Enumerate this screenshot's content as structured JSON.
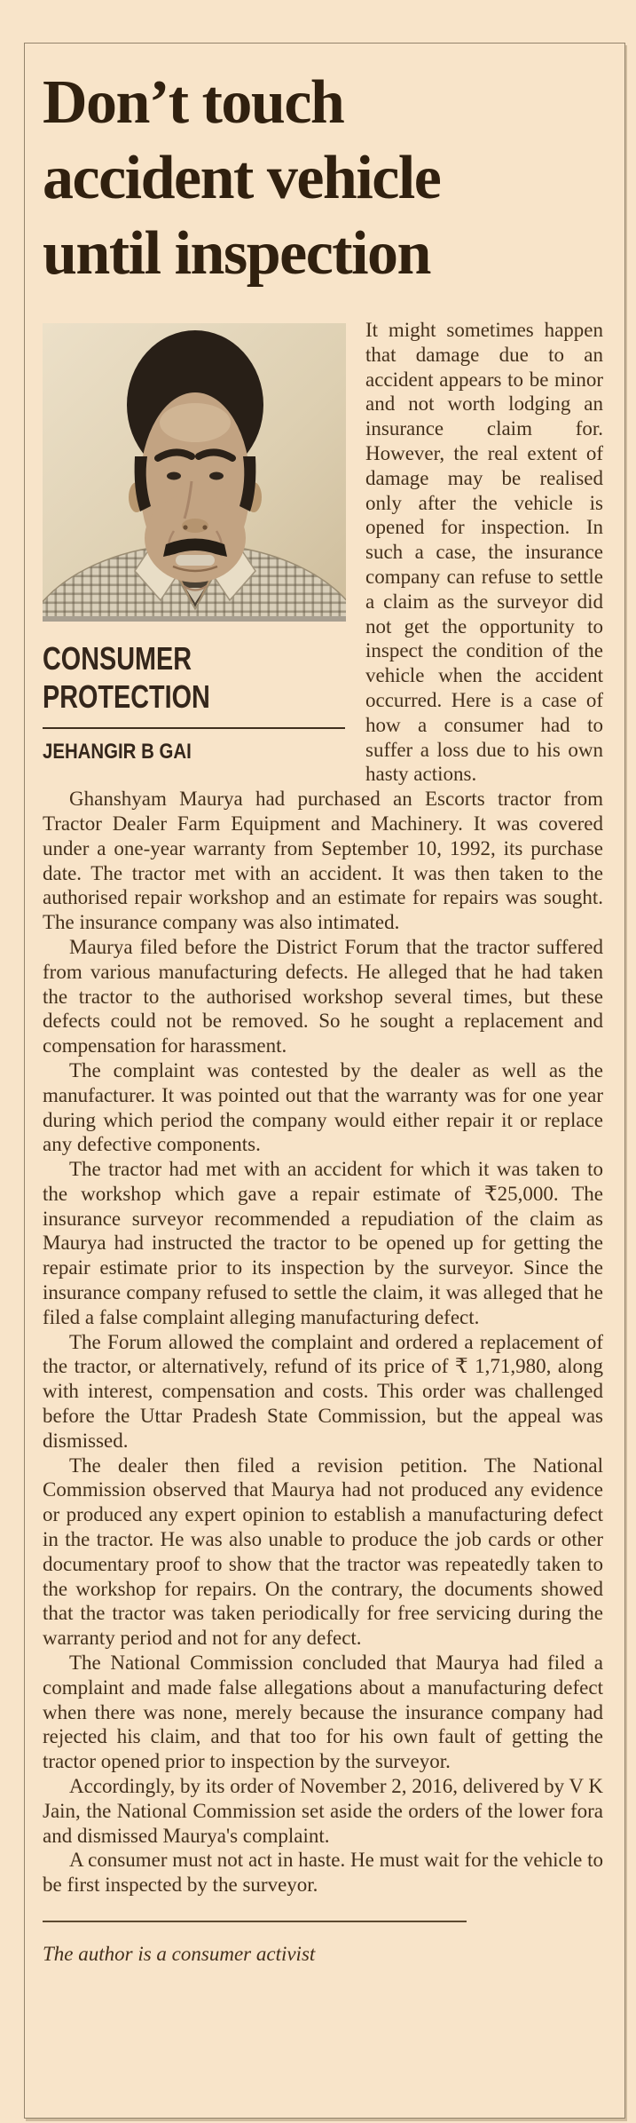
{
  "colors": {
    "paper": "#f8e4c9",
    "ink": "#44301b",
    "headline_ink": "#30200f",
    "box_border": "#93836b"
  },
  "article": {
    "headline_lines": [
      "Don’t touch",
      "accident vehicle",
      "until inspection"
    ],
    "kicker_lines": [
      "CONSUMER",
      "PROTECTION"
    ],
    "byline": "JEHANGIR B GAI",
    "photo": "sepia-portrait-of-author",
    "paragraphs": [
      "It might sometimes happen that damage due to an accident appears to be minor and not worth lodging an insurance claim for. However, the real extent of damage may be realised only after the vehicle is opened for inspection. In such a case, the insurance company can refuse to settle a claim as the surveyor did not get the opportunity to inspect the condition of the vehicle when the accident occurred. Here is a case of how a consumer had to suffer a loss due to his own hasty actions.",
      "Ghanshyam Maurya had purchased an Escorts tractor from Tractor Dealer Farm Equipment and Machinery. It was covered under a one-year warranty from September 10, 1992, its purchase date. The tractor met with an accident. It was then taken to the authorised repair workshop and an estimate for repairs was sought. The insurance company was also intimated.",
      "Maurya filed before the District Forum that the tractor suffered from various manufacturing defects. He alleged that he had taken the tractor to the authorised workshop several times, but these defects could not be removed. So he sought a replacement and compensation for harassment.",
      "The complaint was contested by the dealer as well as the manufacturer. It was pointed out that the warranty was for one year during which period the company would either repair it or replace any defective components.",
      "The tractor had met with an accident for which it was taken to the workshop which gave a repair estimate of ₹25,000. The insurance surveyor recommended a repudiation of the claim as Maurya had instructed the tractor to be opened up for getting the repair estimate prior to its inspection by the surveyor. Since the insurance company refused to settle the claim, it was alleged that he filed a false complaint alleging manufacturing defect.",
      "The Forum allowed the complaint and ordered a replacement of the tractor, or alternatively, refund of its price of ₹ 1,71,980, along with interest, compensation and costs. This order was challenged before the Uttar Pradesh State Commission, but the appeal was dismissed.",
      "The dealer then filed a revision petition. The National Commission observed that Maurya had not produced any evidence or produced any expert opinion to establish a manufacturing defect in the tractor. He was also unable to produce the job cards or other documentary proof to show that the tractor was repeatedly taken to the workshop for repairs. On the contrary, the documents showed that the tractor was taken periodically for free servicing during the warranty period and not for any defect.",
      "The National Commission concluded that Maurya had filed a complaint and made false allegations about a manufacturing defect when there was none, merely because the insurance company had rejected his claim, and that too for his own fault of getting the tractor opened prior to inspection by the surveyor.",
      "Accordingly, by its order of November 2, 2016, delivered by V K Jain, the National Commission set aside the orders of the lower fora and dismissed Maurya's complaint.",
      "A consumer must not act in haste. He must wait for the vehicle to be first inspected by the surveyor."
    ],
    "footnote": "The author is a consumer activist"
  }
}
